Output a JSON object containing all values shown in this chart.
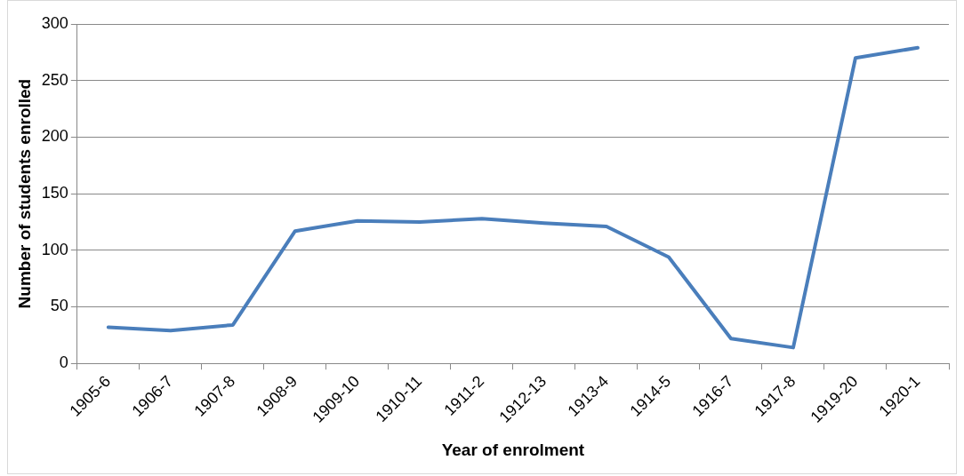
{
  "chart_data": {
    "type": "line",
    "xlabel": "Year of enrolment",
    "ylabel": "Number of students enrolled",
    "categories": [
      "1905-6",
      "1906-7",
      "1907-8",
      "1908-9",
      "1909-10",
      "1910-11",
      "1911-2",
      "1912-13",
      "1913-4",
      "1914-5",
      "1916-7",
      "1917-8",
      "1919-20",
      "1920-1"
    ],
    "series": [
      {
        "color": "#4a7ebb",
        "values": [
          32,
          29,
          34,
          117,
          126,
          125,
          128,
          124,
          121,
          94,
          22,
          14,
          270,
          279
        ]
      }
    ],
    "ylim": [
      0,
      300
    ],
    "yticks": [
      0,
      50,
      100,
      150,
      200,
      250,
      300
    ],
    "grid": "y",
    "legend": false,
    "marker": "none",
    "line_style": "solid"
  }
}
